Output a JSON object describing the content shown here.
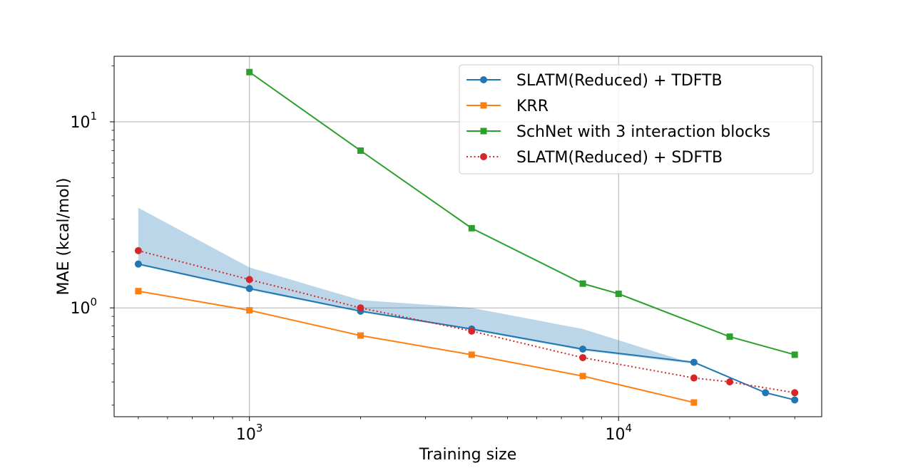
{
  "chart_data": {
    "type": "line",
    "xlabel": "Training size",
    "ylabel": "MAE (kcal/mol)",
    "xscale": "log",
    "yscale": "log",
    "xlim": [
      430,
      35500
    ],
    "ylim": [
      0.26,
      22.5
    ],
    "x_ticks": [
      {
        "value": 1000,
        "base": "10",
        "exp": "3"
      },
      {
        "value": 10000,
        "base": "10",
        "exp": "4"
      }
    ],
    "y_ticks": [
      {
        "value": 1,
        "base": "10",
        "exp": "0"
      },
      {
        "value": 10,
        "base": "10",
        "exp": "1"
      }
    ],
    "grid": true,
    "legend_position": "top-right",
    "band": {
      "color": "#1f77b4",
      "x": [
        500,
        1000,
        2000,
        4000,
        8000,
        16000
      ],
      "upper": [
        3.45,
        1.65,
        1.1,
        1.0,
        0.77,
        0.5
      ],
      "lower": [
        1.7,
        1.25,
        0.95,
        0.76,
        0.59,
        0.5
      ]
    },
    "series": [
      {
        "name": "SLATM(Reduced) + TDFTB",
        "color": "#1f77b4",
        "marker": "circle",
        "linestyle": "solid",
        "x": [
          500,
          1000,
          2000,
          4000,
          8000,
          16000,
          25000,
          30000
        ],
        "y": [
          1.72,
          1.27,
          0.96,
          0.77,
          0.6,
          0.51,
          0.35,
          0.32
        ]
      },
      {
        "name": "KRR",
        "color": "#ff7f0e",
        "marker": "square",
        "linestyle": "solid",
        "x": [
          500,
          1000,
          2000,
          4000,
          8000,
          16000
        ],
        "y": [
          1.23,
          0.97,
          0.71,
          0.56,
          0.43,
          0.31
        ]
      },
      {
        "name": "SchNet with 3 interaction blocks",
        "color": "#2ca02c",
        "marker": "square",
        "linestyle": "solid",
        "x": [
          1000,
          2000,
          4000,
          8000,
          10000,
          20000,
          30000
        ],
        "y": [
          18.5,
          7.0,
          2.68,
          1.35,
          1.19,
          0.7,
          0.56
        ]
      },
      {
        "name": "SLATM(Reduced) + SDFTB",
        "color": "#d62728",
        "marker": "circle",
        "linestyle": "dotted",
        "x": [
          500,
          1000,
          2000,
          4000,
          8000,
          16000,
          20000,
          30000
        ],
        "y": [
          2.03,
          1.42,
          1.0,
          0.75,
          0.54,
          0.42,
          0.4,
          0.35
        ]
      }
    ]
  }
}
